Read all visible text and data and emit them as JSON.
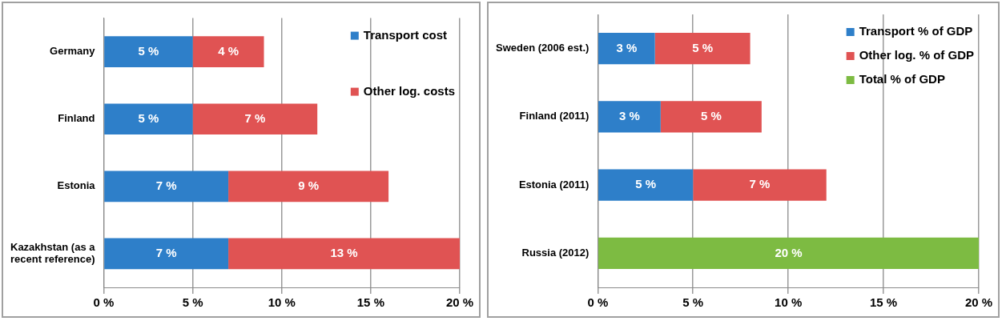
{
  "chart_data": [
    {
      "type": "bar",
      "orientation": "horizontal",
      "stacked": true,
      "categories": [
        "Germany",
        "Finland",
        "Estonia",
        "Kazakhstan (as a recent reference)"
      ],
      "series": [
        {
          "name": "Transport cost",
          "color": "#2e7fc9",
          "values": [
            5,
            5,
            7,
            7
          ],
          "value_labels": [
            "5 %",
            "5 %",
            "7 %",
            "7 %"
          ]
        },
        {
          "name": "Other log. costs",
          "color": "#e05353",
          "values": [
            4,
            7,
            9,
            13
          ],
          "value_labels": [
            "4 %",
            "7 %",
            "9 %",
            "13 %"
          ]
        }
      ],
      "xlim": [
        0,
        20
      ],
      "xticks": [
        {
          "value": 0,
          "label": "0 %"
        },
        {
          "value": 5,
          "label": "5 %"
        },
        {
          "value": 10,
          "label": "10 %"
        },
        {
          "value": 15,
          "label": "15 %"
        },
        {
          "value": 20,
          "label": "20 %"
        }
      ],
      "grid": "x",
      "legend": "top right"
    },
    {
      "type": "bar",
      "orientation": "horizontal",
      "stacked": true,
      "categories": [
        "Sweden (2006 est.)",
        "Finland (2011)",
        "Estonia (2011)",
        "Russia (2012)"
      ],
      "series": [
        {
          "name": "Transport % of GDP",
          "color": "#2e7fc9",
          "values": [
            3,
            3.3,
            5,
            null
          ],
          "value_labels": [
            "3 %",
            "3 %",
            "5 %",
            null
          ]
        },
        {
          "name": "Other log. % of GDP",
          "color": "#e05353",
          "values": [
            5,
            5.3,
            7,
            null
          ],
          "value_labels": [
            "5 %",
            "5 %",
            "7 %",
            null
          ]
        },
        {
          "name": "Total % of GDP",
          "color": "#7dbb42",
          "values": [
            null,
            null,
            null,
            20
          ],
          "value_labels": [
            null,
            null,
            null,
            "20 %"
          ]
        }
      ],
      "xlim": [
        0,
        20
      ],
      "xticks": [
        {
          "value": 0,
          "label": "0 %"
        },
        {
          "value": 5,
          "label": "5 %"
        },
        {
          "value": 10,
          "label": "10 %"
        },
        {
          "value": 15,
          "label": "15 %"
        },
        {
          "value": 20,
          "label": "20 %"
        }
      ],
      "grid": "x",
      "legend": "top right"
    }
  ]
}
